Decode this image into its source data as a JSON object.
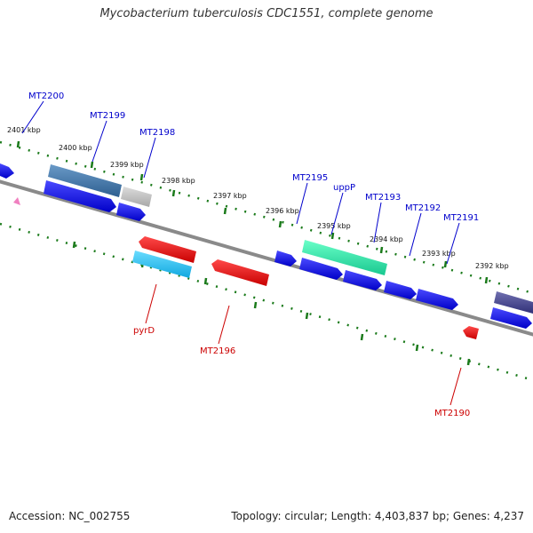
{
  "title": "Mycobacterium tuberculosis CDC1551, complete genome",
  "footer": {
    "accession": "Accession: NC_002755",
    "summary": "Topology: circular; Length: 4,403,837 bp; Genes: 4,237"
  },
  "colors": {
    "forward": "#1010e0",
    "reverse": "#e01010",
    "backbone": "#808080",
    "ticks": "#1a7a1a",
    "label_forward": "#0000cc",
    "label_reverse": "#cc0000"
  },
  "kbp_labels": [
    "2401 kbp",
    "2400 kbp",
    "2399 kbp",
    "2398 kbp",
    "2397 kbp",
    "2396 kbp",
    "2395 kbp",
    "2394 kbp",
    "2393 kbp",
    "2392 kbp"
  ],
  "gene_labels": {
    "forward": [
      "MT2200",
      "MT2199",
      "MT2198",
      "MT2195",
      "uppP",
      "MT2193",
      "MT2192",
      "MT2191"
    ],
    "reverse": [
      "pyrD",
      "MT2196",
      "MT2190"
    ]
  }
}
